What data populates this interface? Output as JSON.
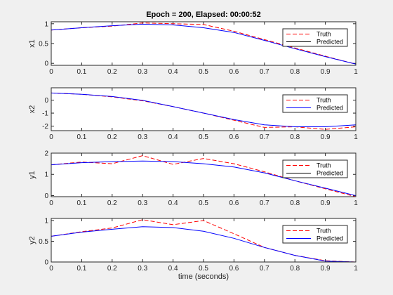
{
  "figure": {
    "title": "Epoch = 200, Elapsed: 00:00:52",
    "xlabel": "time (seconds)"
  },
  "colors": {
    "truth": "#ff0000",
    "predicted": "#0000ff",
    "predicted_legend_1": "#000000"
  },
  "chart_data": [
    {
      "type": "line",
      "ylabel": "x1",
      "xlim": [
        0,
        1
      ],
      "ylim": [
        -0.05,
        1.05
      ],
      "xticks": [
        "0",
        "0.1",
        "0.2",
        "0.3",
        "0.4",
        "0.5",
        "0.6",
        "0.7",
        "0.8",
        "0.9",
        "1"
      ],
      "yticks": [
        {
          "v": 0,
          "t": "0"
        },
        {
          "v": 0.5,
          "t": "0.5"
        },
        {
          "v": 1,
          "t": "1"
        }
      ],
      "legend": {
        "position": "top-right",
        "truth_label": "Truth",
        "predicted_label": "Predicted",
        "predicted_color": "#000000"
      },
      "series": [
        {
          "name": "Truth",
          "style": "dashed",
          "color": "#ff0000",
          "x": [
            0,
            0.1,
            0.2,
            0.3,
            0.4,
            0.5,
            0.6,
            0.7,
            0.8,
            0.9,
            1
          ],
          "y": [
            0.84,
            0.9,
            0.94,
            1.02,
            1.0,
            0.98,
            0.81,
            0.6,
            0.39,
            0.18,
            -0.02
          ]
        },
        {
          "name": "Predicted",
          "style": "solid",
          "color": "#0000ff",
          "x": [
            0,
            0.1,
            0.2,
            0.3,
            0.4,
            0.5,
            0.6,
            0.7,
            0.8,
            0.9,
            1
          ],
          "y": [
            0.84,
            0.9,
            0.95,
            0.99,
            0.97,
            0.9,
            0.78,
            0.58,
            0.37,
            0.17,
            -0.02
          ]
        }
      ]
    },
    {
      "type": "line",
      "ylabel": "x2",
      "xlim": [
        0,
        1
      ],
      "ylim": [
        -2.35,
        0.95
      ],
      "xticks": [
        "0",
        "0.1",
        "0.2",
        "0.3",
        "0.4",
        "0.5",
        "0.6",
        "0.7",
        "0.8",
        "0.9",
        "1"
      ],
      "yticks": [
        {
          "v": -2,
          "t": "-2"
        },
        {
          "v": -1,
          "t": "-1"
        },
        {
          "v": 0,
          "t": "0"
        }
      ],
      "legend": {
        "position": "top-right",
        "truth_label": "Truth",
        "predicted_label": "Predicted",
        "predicted_color": "#0000ff"
      },
      "series": [
        {
          "name": "Truth",
          "style": "dashed",
          "color": "#ff0000",
          "x": [
            0,
            0.1,
            0.2,
            0.3,
            0.4,
            0.5,
            0.6,
            0.7,
            0.8,
            0.9,
            1
          ],
          "y": [
            0.55,
            0.45,
            0.25,
            -0.05,
            -0.5,
            -1.0,
            -1.55,
            -2.1,
            -2.05,
            -2.25,
            -2.05
          ]
        },
        {
          "name": "Predicted",
          "style": "solid",
          "color": "#0000ff",
          "x": [
            0,
            0.1,
            0.2,
            0.3,
            0.4,
            0.5,
            0.6,
            0.7,
            0.8,
            0.9,
            1
          ],
          "y": [
            0.55,
            0.45,
            0.28,
            -0.02,
            -0.5,
            -1.0,
            -1.5,
            -1.9,
            -2.05,
            -2.05,
            -1.9
          ]
        }
      ]
    },
    {
      "type": "line",
      "ylabel": "y1",
      "xlim": [
        0,
        1
      ],
      "ylim": [
        -0.05,
        2.0
      ],
      "xticks": [
        "0",
        "0.1",
        "0.2",
        "0.3",
        "0.4",
        "0.5",
        "0.6",
        "0.7",
        "0.8",
        "0.9",
        "1"
      ],
      "yticks": [
        {
          "v": 0,
          "t": "0"
        },
        {
          "v": 1,
          "t": "1"
        },
        {
          "v": 2,
          "t": "2"
        }
      ],
      "legend": {
        "position": "top-right",
        "truth_label": "Truth",
        "predicted_label": "Predicted",
        "predicted_color": "#000000"
      },
      "series": [
        {
          "name": "Truth",
          "style": "dashed",
          "color": "#ff0000",
          "x": [
            0,
            0.1,
            0.2,
            0.3,
            0.4,
            0.5,
            0.6,
            0.7,
            0.8,
            0.9,
            1
          ],
          "y": [
            1.45,
            1.58,
            1.5,
            1.88,
            1.47,
            1.75,
            1.5,
            1.12,
            0.7,
            0.32,
            -0.05
          ]
        },
        {
          "name": "Predicted",
          "style": "solid",
          "color": "#0000ff",
          "x": [
            0,
            0.1,
            0.2,
            0.3,
            0.4,
            0.5,
            0.6,
            0.7,
            0.8,
            0.9,
            1
          ],
          "y": [
            1.45,
            1.55,
            1.6,
            1.63,
            1.6,
            1.5,
            1.35,
            1.07,
            0.7,
            0.35,
            0.0
          ]
        }
      ]
    },
    {
      "type": "line",
      "ylabel": "y2",
      "xlim": [
        0,
        1
      ],
      "ylim": [
        0,
        1.05
      ],
      "xticks": [
        "0",
        "0.1",
        "0.2",
        "0.3",
        "0.4",
        "0.5",
        "0.6",
        "0.7",
        "0.8",
        "0.9",
        "1"
      ],
      "yticks": [
        {
          "v": 0,
          "t": "0"
        },
        {
          "v": 0.5,
          "t": "0.5"
        },
        {
          "v": 1,
          "t": "1"
        }
      ],
      "legend": {
        "position": "top-right",
        "truth_label": "Truth",
        "predicted_label": "Predicted",
        "predicted_color": "#0000ff"
      },
      "series": [
        {
          "name": "Truth",
          "style": "dashed",
          "color": "#ff0000",
          "x": [
            0,
            0.1,
            0.2,
            0.3,
            0.4,
            0.5,
            0.6,
            0.7,
            0.8,
            0.9,
            1
          ],
          "y": [
            0.62,
            0.73,
            0.82,
            1.02,
            0.9,
            1.0,
            0.68,
            0.35,
            0.16,
            0.03,
            0.0
          ]
        },
        {
          "name": "Predicted",
          "style": "solid",
          "color": "#0000ff",
          "x": [
            0,
            0.1,
            0.2,
            0.3,
            0.4,
            0.5,
            0.6,
            0.7,
            0.8,
            0.9,
            1
          ],
          "y": [
            0.62,
            0.72,
            0.79,
            0.85,
            0.83,
            0.74,
            0.57,
            0.35,
            0.16,
            0.02,
            0.0
          ]
        }
      ]
    }
  ]
}
